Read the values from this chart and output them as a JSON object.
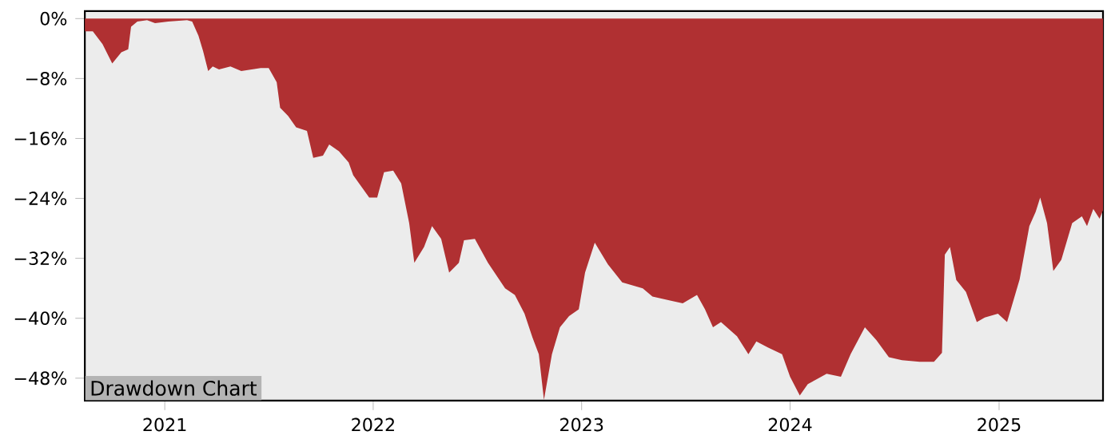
{
  "chart_data": {
    "type": "area",
    "title": "Drawdown Chart",
    "color": "#b03032",
    "x": [
      "2020-08-14",
      "2020-08-28",
      "2020-09-14",
      "2020-10-01",
      "2020-10-17",
      "2020-10-29",
      "2020-11-03",
      "2020-11-14",
      "2020-12-01",
      "2020-12-15",
      "2021-01-07",
      "2021-02-09",
      "2021-02-18",
      "2021-03-01",
      "2021-03-09",
      "2021-03-18",
      "2021-03-26",
      "2021-04-06",
      "2021-04-26",
      "2021-05-15",
      "2021-06-18",
      "2021-07-02",
      "2021-07-16",
      "2021-07-22",
      "2021-08-05",
      "2021-08-19",
      "2021-09-07",
      "2021-09-18",
      "2021-10-05",
      "2021-10-16",
      "2021-11-02",
      "2021-11-19",
      "2021-11-27",
      "2021-12-11",
      "2021-12-25",
      "2022-01-08",
      "2022-01-20",
      "2022-02-05",
      "2022-02-19",
      "2022-03-05",
      "2022-03-14",
      "2022-03-31",
      "2022-04-14",
      "2022-04-30",
      "2022-05-14",
      "2022-05-31",
      "2022-06-09",
      "2022-06-28",
      "2022-07-21",
      "2022-08-20",
      "2022-09-06",
      "2022-09-23",
      "2022-10-07",
      "2022-10-18",
      "2022-10-27",
      "2022-11-10",
      "2022-11-24",
      "2022-12-10",
      "2022-12-27",
      "2023-01-07",
      "2023-01-24",
      "2023-02-16",
      "2023-03-13",
      "2023-04-18",
      "2023-05-05",
      "2023-06-08",
      "2023-06-27",
      "2023-07-22",
      "2023-08-05",
      "2023-08-19",
      "2023-09-02",
      "2023-09-30",
      "2023-10-20",
      "2023-11-03",
      "2023-11-23",
      "2023-12-18",
      "2024-01-01",
      "2024-01-18",
      "2024-02-01",
      "2024-02-15",
      "2024-03-05",
      "2024-03-30",
      "2024-04-16",
      "2024-05-11",
      "2024-05-31",
      "2024-06-22",
      "2024-07-15",
      "2024-08-15",
      "2024-09-09",
      "2024-09-23",
      "2024-09-28",
      "2024-10-07",
      "2024-10-18",
      "2024-11-04",
      "2024-11-23",
      "2024-12-07",
      "2024-12-30",
      "2025-01-15",
      "2025-02-06",
      "2025-02-23",
      "2025-03-06",
      "2025-03-14",
      "2025-03-26",
      "2025-04-06",
      "2025-04-20",
      "2025-05-09",
      "2025-05-26",
      "2025-06-04",
      "2025-06-15",
      "2025-06-26",
      "2025-07-02"
    ],
    "values": [
      -1.7,
      -1.7,
      -3.4,
      -6.0,
      -4.5,
      -4.1,
      -1.1,
      -0.4,
      -0.2,
      -0.6,
      -0.4,
      -0.2,
      -0.4,
      -2.3,
      -4.3,
      -7.0,
      -6.4,
      -6.8,
      -6.4,
      -7.0,
      -6.6,
      -6.6,
      -8.5,
      -11.9,
      -13.0,
      -14.5,
      -15.0,
      -18.6,
      -18.3,
      -16.8,
      -17.7,
      -19.2,
      -20.9,
      -22.4,
      -23.9,
      -23.9,
      -20.5,
      -20.3,
      -22.0,
      -27.3,
      -32.6,
      -30.5,
      -27.7,
      -29.4,
      -33.9,
      -32.6,
      -29.6,
      -29.4,
      -32.6,
      -36.0,
      -36.9,
      -39.4,
      -42.6,
      -44.8,
      -50.9,
      -44.8,
      -41.2,
      -39.7,
      -38.8,
      -33.9,
      -29.9,
      -32.8,
      -35.2,
      -36.0,
      -37.1,
      -37.7,
      -38.0,
      -36.9,
      -38.8,
      -41.2,
      -40.5,
      -42.4,
      -44.8,
      -43.1,
      -43.9,
      -44.8,
      -47.8,
      -50.3,
      -48.8,
      -48.2,
      -47.4,
      -47.8,
      -44.8,
      -41.2,
      -42.9,
      -45.2,
      -45.6,
      -45.8,
      -45.8,
      -44.6,
      -31.5,
      -30.5,
      -34.9,
      -36.5,
      -40.5,
      -39.9,
      -39.4,
      -40.5,
      -34.8,
      -27.7,
      -25.8,
      -23.9,
      -27.3,
      -33.7,
      -32.2,
      -27.3,
      -26.4,
      -27.7,
      -25.4,
      -26.7,
      -25.6
    ],
    "xlim": [
      "2020-08-14",
      "2025-07-02"
    ],
    "ylim": [
      -51,
      1
    ],
    "xticks": [
      {
        "value": "2021-01-01",
        "label": "2021"
      },
      {
        "value": "2022-01-01",
        "label": "2022"
      },
      {
        "value": "2023-01-01",
        "label": "2023"
      },
      {
        "value": "2024-01-01",
        "label": "2024"
      },
      {
        "value": "2025-01-01",
        "label": "2025"
      }
    ],
    "yticks": [
      {
        "value": 0,
        "label": "0%"
      },
      {
        "value": -8,
        "label": "−8%"
      },
      {
        "value": -16,
        "label": "−16%"
      },
      {
        "value": -24,
        "label": "−24%"
      },
      {
        "value": -32,
        "label": "−32%"
      },
      {
        "value": -40,
        "label": "−40%"
      },
      {
        "value": -48,
        "label": "−48%"
      }
    ]
  }
}
